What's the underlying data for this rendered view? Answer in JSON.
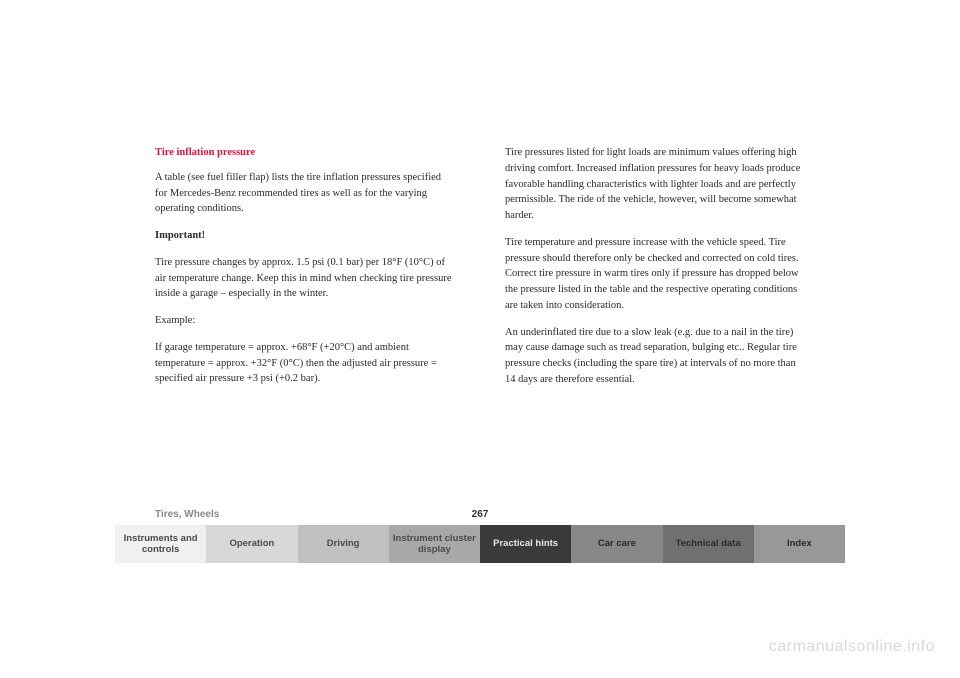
{
  "header": {
    "title": "Tire inflation pressure"
  },
  "left_column": {
    "p1": "A table (see fuel filler flap) lists the tire inflation pressures specified for Mercedes-Benz recommended tires as well as for the varying operating conditions.",
    "important_label": "Important!",
    "p2": "Tire pressure changes by approx. 1.5 psi (0.1 bar) per 18°F (10°C) of air temperature change. Keep this in mind when checking tire pressure inside a garage – especially in the winter.",
    "p3": "Example:",
    "p4": "If garage temperature = approx. +68°F (+20°C) and ambient temperature = approx. +32°F (0°C) then the adjusted air pressure = specified air pressure +3 psi (+0.2 bar)."
  },
  "right_column": {
    "p1": "Tire pressures listed for light loads are minimum values offering high driving comfort. Increased inflation pressures for heavy loads produce favorable handling characteristics with lighter loads and are perfectly permissible. The ride of the vehicle, however, will become somewhat harder.",
    "p2": "Tire temperature and pressure increase with the vehicle speed. Tire pressure should therefore only be checked and corrected on cold tires. Correct tire pressure in warm tires only if pressure has dropped below the pressure listed in the table and the respective operating conditions are taken into consideration.",
    "p3": "An underinflated tire due to a slow leak (e.g. due to a nail in the tire) may cause damage such as tread separation, bulging etc.. Regular tire pressure checks (including the spare tire) at intervals of no more than 14 days are therefore essential."
  },
  "footer": {
    "section_label": "Tires, Wheels",
    "page_number": "267"
  },
  "tabs": {
    "t1": "Instruments and controls",
    "t2": "Operation",
    "t3": "Driving",
    "t4": "Instrument cluster display",
    "t5": "Practical hints",
    "t6": "Car care",
    "t7": "Technical data",
    "t8": "Index"
  },
  "watermark": "carmanualsonline.info",
  "colors": {
    "title_red": "#c41e3a",
    "body_text": "#2a2a2a",
    "footer_grey": "#888888",
    "active_tab_bg": "#3a3a3a",
    "watermark_color": "#d8d8d8"
  }
}
